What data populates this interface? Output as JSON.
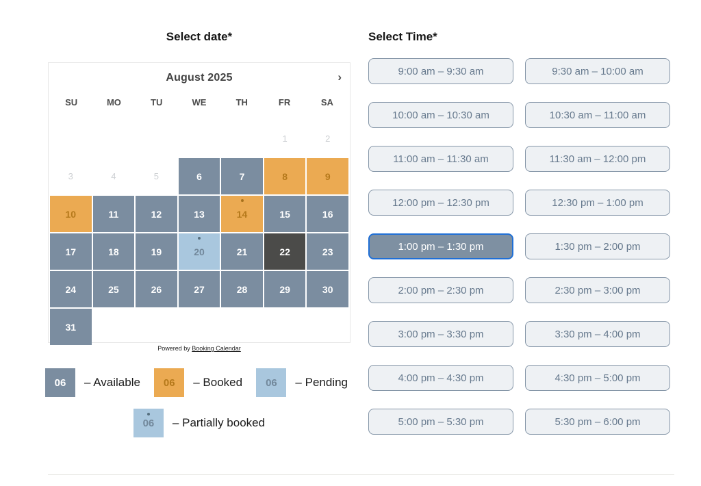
{
  "left": {
    "heading": "Select date*",
    "calendar": {
      "month_title": "August 2025",
      "next_arrow": "›",
      "weekdays": [
        "SU",
        "MO",
        "TU",
        "WE",
        "TH",
        "FR",
        "SA"
      ],
      "weeks": [
        [
          {
            "day": "",
            "state": "empty"
          },
          {
            "day": "",
            "state": "empty"
          },
          {
            "day": "",
            "state": "empty"
          },
          {
            "day": "",
            "state": "empty"
          },
          {
            "day": "",
            "state": "empty"
          },
          {
            "day": "1",
            "state": "disabled"
          },
          {
            "day": "2",
            "state": "disabled"
          }
        ],
        [
          {
            "day": "3",
            "state": "disabled"
          },
          {
            "day": "4",
            "state": "disabled"
          },
          {
            "day": "5",
            "state": "disabled"
          },
          {
            "day": "6",
            "state": "available"
          },
          {
            "day": "7",
            "state": "available"
          },
          {
            "day": "8",
            "state": "booked"
          },
          {
            "day": "9",
            "state": "booked"
          }
        ],
        [
          {
            "day": "10",
            "state": "booked"
          },
          {
            "day": "11",
            "state": "available"
          },
          {
            "day": "12",
            "state": "available"
          },
          {
            "day": "13",
            "state": "available"
          },
          {
            "day": "14",
            "state": "booked",
            "dot": true
          },
          {
            "day": "15",
            "state": "available"
          },
          {
            "day": "16",
            "state": "available"
          }
        ],
        [
          {
            "day": "17",
            "state": "available"
          },
          {
            "day": "18",
            "state": "available"
          },
          {
            "day": "19",
            "state": "available"
          },
          {
            "day": "20",
            "state": "pending",
            "dot": true
          },
          {
            "day": "21",
            "state": "available"
          },
          {
            "day": "22",
            "state": "selected"
          },
          {
            "day": "23",
            "state": "available"
          }
        ],
        [
          {
            "day": "24",
            "state": "available"
          },
          {
            "day": "25",
            "state": "available"
          },
          {
            "day": "26",
            "state": "available"
          },
          {
            "day": "27",
            "state": "available"
          },
          {
            "day": "28",
            "state": "available"
          },
          {
            "day": "29",
            "state": "available"
          },
          {
            "day": "30",
            "state": "available"
          }
        ],
        [
          {
            "day": "31",
            "state": "available"
          },
          {
            "day": "",
            "state": "empty"
          },
          {
            "day": "",
            "state": "empty"
          },
          {
            "day": "",
            "state": "empty"
          },
          {
            "day": "",
            "state": "empty"
          },
          {
            "day": "",
            "state": "empty"
          },
          {
            "day": "",
            "state": "empty"
          }
        ]
      ],
      "powered_by_prefix": "Powered by ",
      "powered_by_link": "Booking Calendar"
    },
    "legend_row1": [
      {
        "num": "06",
        "type": "available",
        "label": "– Available",
        "dot": false
      },
      {
        "num": "06",
        "type": "booked",
        "label": "– Booked",
        "dot": false
      },
      {
        "num": "06",
        "type": "pending",
        "label": "– Pending",
        "dot": false
      }
    ],
    "legend_row2": [
      {
        "num": "06",
        "type": "partial",
        "label": "– Partially booked",
        "dot": true
      }
    ]
  },
  "right": {
    "heading": "Select Time*",
    "slots": [
      {
        "label": "9:00 am – 9:30 am",
        "selected": false
      },
      {
        "label": "9:30 am – 10:00 am",
        "selected": false
      },
      {
        "label": "10:00 am – 10:30 am",
        "selected": false
      },
      {
        "label": "10:30 am – 11:00 am",
        "selected": false
      },
      {
        "label": "11:00 am – 11:30 am",
        "selected": false
      },
      {
        "label": "11:30 am – 12:00 pm",
        "selected": false
      },
      {
        "label": "12:00 pm – 12:30 pm",
        "selected": false
      },
      {
        "label": "12:30 pm – 1:00 pm",
        "selected": false
      },
      {
        "label": "1:00 pm – 1:30 pm",
        "selected": true
      },
      {
        "label": "1:30 pm – 2:00 pm",
        "selected": false
      },
      {
        "label": "2:00 pm – 2:30 pm",
        "selected": false
      },
      {
        "label": "2:30 pm – 3:00 pm",
        "selected": false
      },
      {
        "label": "3:00 pm – 3:30 pm",
        "selected": false
      },
      {
        "label": "3:30 pm – 4:00 pm",
        "selected": false
      },
      {
        "label": "4:00 pm – 4:30 pm",
        "selected": false
      },
      {
        "label": "4:30 pm – 5:00 pm",
        "selected": false
      },
      {
        "label": "5:00 pm – 5:30 pm",
        "selected": false
      },
      {
        "label": "5:30 pm – 6:00 pm",
        "selected": false
      }
    ]
  },
  "colors": {
    "available": "#7b8da0",
    "booked": "#ebaa52",
    "booked_text": "#b5791b",
    "pending": "#a9c7de",
    "selected_day": "#4b4b49",
    "slot_background": "#eef1f4",
    "slot_border": "#8495a7",
    "slot_text": "#66798d",
    "selected_slot_border": "#1f6fd6"
  }
}
